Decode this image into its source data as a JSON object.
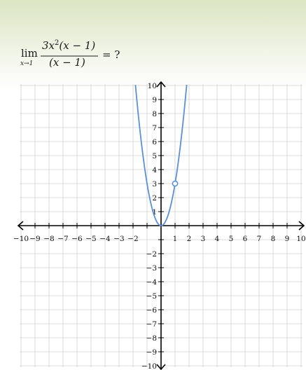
{
  "problem": {
    "lim_word": "lim",
    "lim_sub": "x→1",
    "numerator": "3x",
    "numerator_exp": "2",
    "numerator_rest": "(x − 1)",
    "denominator": "(x − 1)",
    "rhs": "= ?"
  },
  "chart_data": {
    "type": "line",
    "xlim": [
      -10,
      10
    ],
    "ylim": [
      -10,
      10
    ],
    "grid": true,
    "x_ticks": [
      -10,
      -9,
      -8,
      -7,
      -6,
      -5,
      -4,
      -3,
      -2,
      1,
      2,
      3,
      4,
      5,
      6,
      7,
      8,
      9,
      10
    ],
    "y_ticks": [
      -10,
      -9,
      -8,
      -7,
      -6,
      -5,
      -4,
      -3,
      -2,
      1,
      2,
      3,
      4,
      5,
      6,
      7,
      8,
      9,
      10
    ],
    "series": [
      {
        "function": "3x^2",
        "x_range": [
          -1.83,
          1.83
        ],
        "color": "#5b8fdb"
      }
    ],
    "open_points": [
      {
        "x": 1,
        "y": 3
      }
    ],
    "colors": {
      "grid": "#d0d0d0",
      "axis": "#000000",
      "curve": "#5b8fdb"
    }
  }
}
